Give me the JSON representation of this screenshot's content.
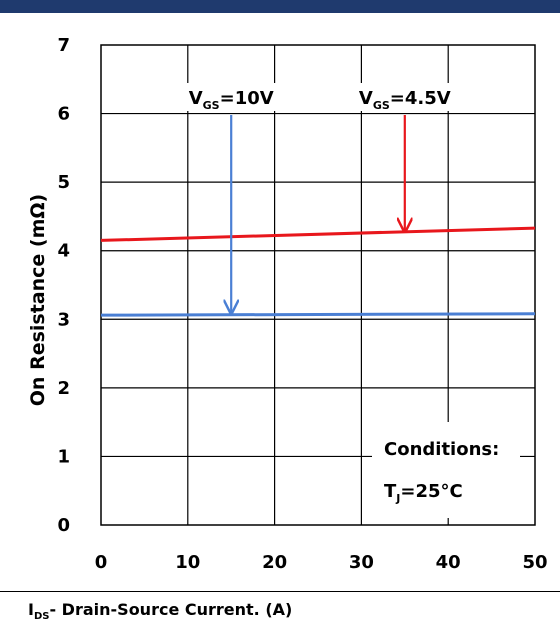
{
  "chart_data": {
    "type": "line",
    "xlabel_main": "I",
    "xlabel_sub": "DS",
    "xlabel_rest": "- Drain-Source Current. (A)",
    "ylabel": "On Resistance (mΩ)",
    "xlim": [
      0,
      50
    ],
    "ylim": [
      0,
      7
    ],
    "x_ticks": [
      "0",
      "10",
      "20",
      "30",
      "40",
      "50"
    ],
    "y_ticks": [
      "0",
      "1",
      "2",
      "3",
      "4",
      "5",
      "6",
      "7"
    ],
    "grid": true,
    "series": [
      {
        "name": "VGS=10V",
        "color": "#4a7fd4",
        "x": [
          0,
          50
        ],
        "y": [
          3.06,
          3.08
        ]
      },
      {
        "name": "VGS=4.5V",
        "color": "#e8171c",
        "x": [
          0,
          50
        ],
        "y": [
          4.15,
          4.33
        ]
      }
    ],
    "annotations": [
      {
        "main": "V",
        "sub": "GS",
        "rest": "=10V",
        "x": 15,
        "y": 6.3,
        "arrow_to_y": 3.06,
        "color": "#4a7fd4"
      },
      {
        "main": "V",
        "sub": "GS",
        "rest": "=4.5V",
        "x": 35,
        "y": 6.3,
        "arrow_to_y": 4.25,
        "color": "#e8171c"
      }
    ],
    "conditions": {
      "title": "Conditions:",
      "main": "T",
      "sub": "J",
      "rest": "=25°C"
    }
  }
}
